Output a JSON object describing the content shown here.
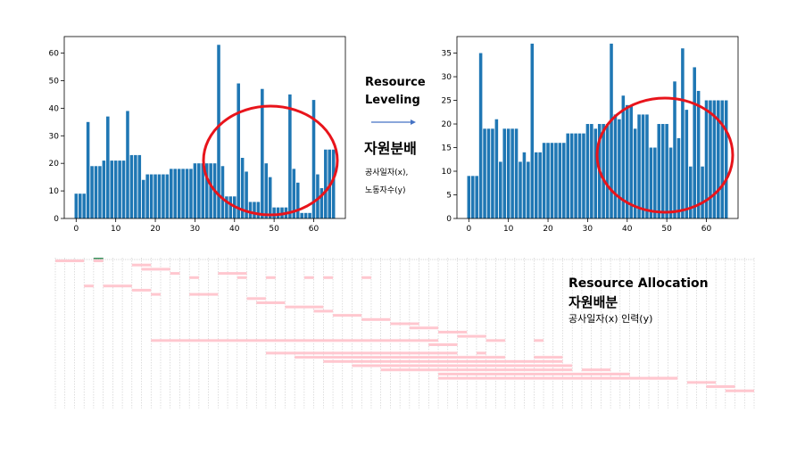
{
  "chart_data": [
    {
      "type": "bar",
      "title": "",
      "xlabel": "",
      "ylabel": "",
      "xlim": [
        -3,
        68
      ],
      "ylim": [
        0,
        66
      ],
      "xticks": [
        0,
        10,
        20,
        30,
        40,
        50,
        60
      ],
      "yticks": [
        0,
        10,
        20,
        30,
        40,
        50,
        60
      ],
      "bar_color": "#1f77b4",
      "x": [
        0,
        1,
        2,
        3,
        4,
        5,
        6,
        7,
        8,
        9,
        10,
        11,
        12,
        13,
        14,
        15,
        16,
        17,
        18,
        19,
        20,
        21,
        22,
        23,
        24,
        25,
        26,
        27,
        28,
        29,
        30,
        31,
        32,
        33,
        34,
        35,
        36,
        37,
        38,
        39,
        40,
        41,
        42,
        43,
        44,
        45,
        46,
        47,
        48,
        49,
        50,
        51,
        52,
        53,
        54,
        55,
        56,
        57,
        58,
        59,
        60,
        61,
        62,
        63,
        64,
        65
      ],
      "values": [
        9,
        9,
        9,
        35,
        19,
        19,
        19,
        21,
        37,
        21,
        21,
        21,
        21,
        39,
        23,
        23,
        23,
        14,
        16,
        16,
        16,
        16,
        16,
        16,
        18,
        18,
        18,
        18,
        18,
        18,
        20,
        20,
        20,
        20,
        20,
        20,
        63,
        19,
        8,
        8,
        8,
        49,
        22,
        17,
        6,
        6,
        6,
        47,
        20,
        15,
        4,
        4,
        4,
        4,
        45,
        18,
        13,
        2,
        2,
        2,
        43,
        16,
        11,
        25,
        25,
        25
      ]
    },
    {
      "type": "bar",
      "title": "",
      "xlabel": "",
      "ylabel": "",
      "xlim": [
        -3,
        68
      ],
      "ylim": [
        0,
        38.5
      ],
      "xticks": [
        0,
        10,
        20,
        30,
        40,
        50,
        60
      ],
      "yticks": [
        0,
        5,
        10,
        15,
        20,
        25,
        30,
        35
      ],
      "bar_color": "#1f77b4",
      "x": [
        0,
        1,
        2,
        3,
        4,
        5,
        6,
        7,
        8,
        9,
        10,
        11,
        12,
        13,
        14,
        15,
        16,
        17,
        18,
        19,
        20,
        21,
        22,
        23,
        24,
        25,
        26,
        27,
        28,
        29,
        30,
        31,
        32,
        33,
        34,
        35,
        36,
        37,
        38,
        39,
        40,
        41,
        42,
        43,
        44,
        45,
        46,
        47,
        48,
        49,
        50,
        51,
        52,
        53,
        54,
        55,
        56,
        57,
        58,
        59,
        60,
        61,
        62,
        63,
        64,
        65
      ],
      "values": [
        9,
        9,
        9,
        35,
        19,
        19,
        19,
        21,
        12,
        19,
        19,
        19,
        19,
        12,
        14,
        12,
        37,
        14,
        14,
        16,
        16,
        16,
        16,
        16,
        16,
        18,
        18,
        18,
        18,
        18,
        20,
        20,
        19,
        20,
        20,
        20,
        37,
        22,
        21,
        26,
        24,
        24,
        19,
        22,
        22,
        22,
        15,
        15,
        20,
        20,
        20,
        15,
        29,
        17,
        36,
        23,
        11,
        32,
        27,
        11,
        25,
        25,
        25,
        25,
        25,
        25
      ]
    }
  ],
  "annotations": {
    "resource_leveling_line1": "Resource",
    "resource_leveling_line2": "Leveling",
    "korean_leveling": "자원분배",
    "x_desc": "공사일자(x),",
    "y_desc": "노동자수(y)",
    "allocation_title": "Resource Allocation",
    "allocation_korean": "자원배분",
    "allocation_desc": "공사일자(x) 인력(y)"
  },
  "highlight_color": "#e8141b",
  "gantt": {
    "bar_color": "#ffc7cf",
    "accent_color": "#3a8f5a",
    "grid_color": "#c8c8c8"
  }
}
